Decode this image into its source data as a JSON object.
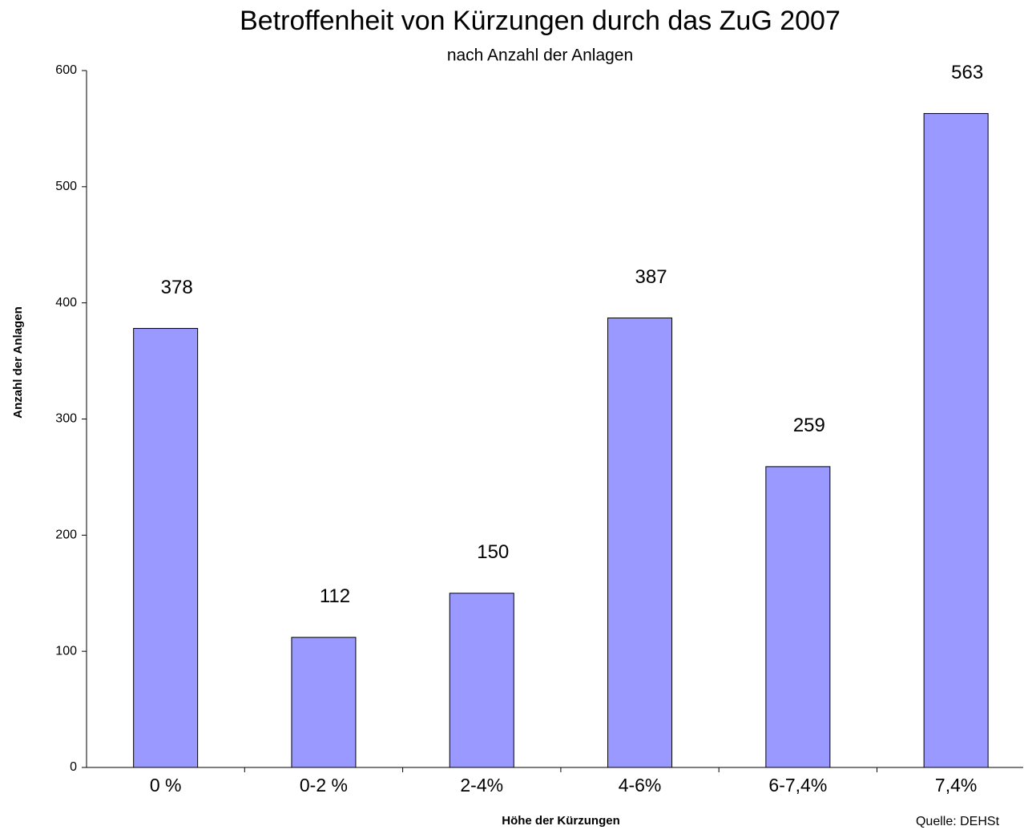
{
  "chart_data": {
    "type": "bar",
    "title": "Betroffenheit von Kürzungen durch das ZuG 2007",
    "subtitle": "nach Anzahl der Anlagen",
    "x_label": "Höhe der Kürzungen",
    "y_label": "Anzahl der Anlagen",
    "source": "Quelle: DEHSt",
    "categories": [
      "0 %",
      "0-2 %",
      "2-4%",
      "4-6%",
      "6-7,4%",
      "7,4%"
    ],
    "values": [
      378,
      112,
      150,
      387,
      259,
      563
    ],
    "color": "#9999ff",
    "ylim": [
      0,
      600
    ],
    "yticks": [
      0,
      100,
      200,
      300,
      400,
      500,
      600
    ],
    "grid": false
  }
}
